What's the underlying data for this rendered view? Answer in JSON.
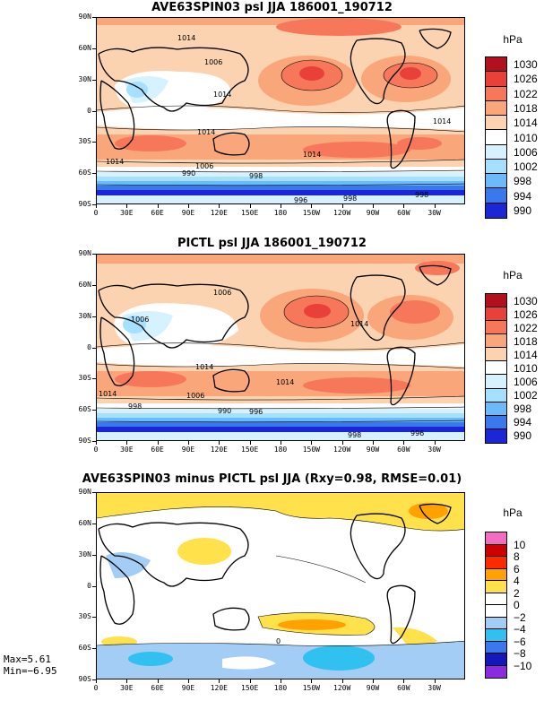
{
  "panels": [
    {
      "title": "AVE63SPIN03 psl JJA 186001_190712",
      "units": "hPa",
      "colorbar": {
        "labels": [
          "1030",
          "1026",
          "1022",
          "1018",
          "1014",
          "1010",
          "1006",
          "1002",
          "998",
          "994",
          "990"
        ],
        "colors": [
          "#b3101f",
          "#e9403a",
          "#f7775a",
          "#f9a77a",
          "#fcd3b0",
          "#ffffff",
          "#d6f1ff",
          "#a5e1ff",
          "#6bbaf9",
          "#3a79ec",
          "#1b27d6"
        ]
      },
      "contour_labels": [
        "1014",
        "1006",
        "1014",
        "1014",
        "1014",
        "1014",
        "990",
        "1006",
        "998",
        "1014",
        "996",
        "998",
        "998"
      ]
    },
    {
      "title": "PICTL psl JJA 186001_190712",
      "units": "hPa",
      "colorbar": {
        "labels": [
          "1030",
          "1026",
          "1022",
          "1018",
          "1014",
          "1010",
          "1006",
          "1002",
          "998",
          "994",
          "990"
        ],
        "colors": [
          "#b3101f",
          "#e9403a",
          "#f7775a",
          "#f9a77a",
          "#fcd3b0",
          "#ffffff",
          "#d6f1ff",
          "#a5e1ff",
          "#6bbaf9",
          "#3a79ec",
          "#1b27d6"
        ]
      },
      "contour_labels": [
        "1006",
        "1006",
        "1014",
        "1014",
        "1014",
        "1014",
        "1006",
        "998",
        "990",
        "996",
        "998",
        "996"
      ]
    },
    {
      "title": "AVE63SPIN03 minus PICTL psl JJA (Rxy=0.98, RMSE=0.01)",
      "units": "hPa",
      "colorbar": {
        "labels": [
          "10",
          "8",
          "6",
          "4",
          "2",
          "0",
          "−2",
          "−4",
          "−6",
          "−8",
          "−10"
        ],
        "colors": [
          "#f26dc1",
          "#cc0000",
          "#ff2a00",
          "#ffa100",
          "#ffe14b",
          "#ffffff",
          "#ffffff",
          "#a3cdf5",
          "#30c1f0",
          "#3a79ec",
          "#1518b8",
          "#8a2be2"
        ]
      },
      "contour_labels": [
        "0"
      ],
      "stats": {
        "max": "Max=5.61",
        "min": "Min=−6.95"
      }
    }
  ],
  "lat_ticks": [
    "90N",
    "60N",
    "30N",
    "0",
    "30S",
    "60S",
    "90S"
  ],
  "lon_ticks": [
    "0",
    "30E",
    "60E",
    "90E",
    "120E",
    "150E",
    "180",
    "150W",
    "120W",
    "90W",
    "60W",
    "30W"
  ]
}
